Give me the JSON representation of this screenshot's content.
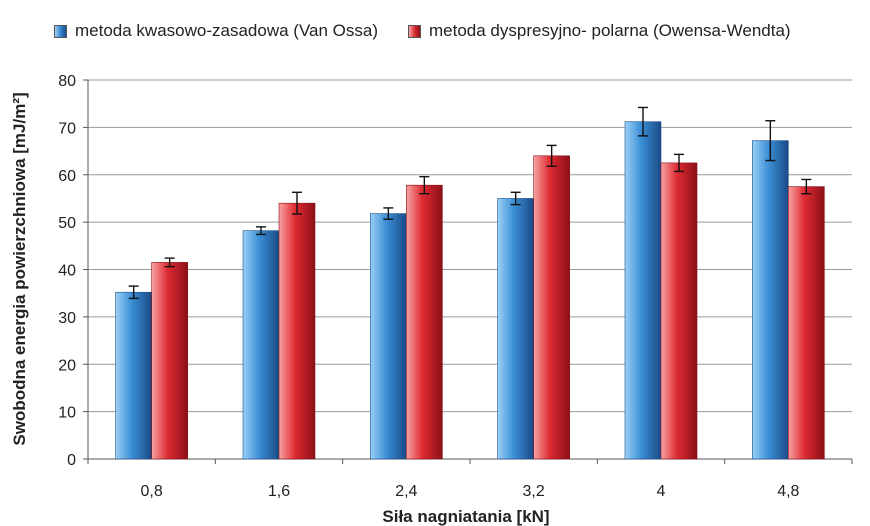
{
  "chart_data": {
    "type": "bar",
    "xlabel": "Siła nagniatania  [kN]",
    "ylabel": "Swobodna energia powierzchniowa [mJ/m²]",
    "ylim": [
      0,
      80
    ],
    "yticks": [
      0,
      10,
      20,
      30,
      40,
      50,
      60,
      70,
      80
    ],
    "grid": true,
    "legend_position": "top",
    "categories": [
      "0,8",
      "1,6",
      "2,4",
      "3,2",
      "4",
      "4,8"
    ],
    "series": [
      {
        "name": "metoda kwasowo-zasadowa (Van Ossa)",
        "color": "#2f7fc9",
        "values": [
          35.2,
          48.2,
          51.8,
          55.0,
          71.2,
          67.2
        ],
        "error": [
          1.3,
          0.8,
          1.2,
          1.3,
          3.0,
          4.2
        ]
      },
      {
        "name": "metoda dyspresyjno- polarna (Owensa-Wendta)",
        "color": "#d7262e",
        "values": [
          41.5,
          54.0,
          57.8,
          64.0,
          62.5,
          57.5
        ],
        "error": [
          0.9,
          2.3,
          1.8,
          2.2,
          1.8,
          1.5
        ]
      }
    ]
  }
}
